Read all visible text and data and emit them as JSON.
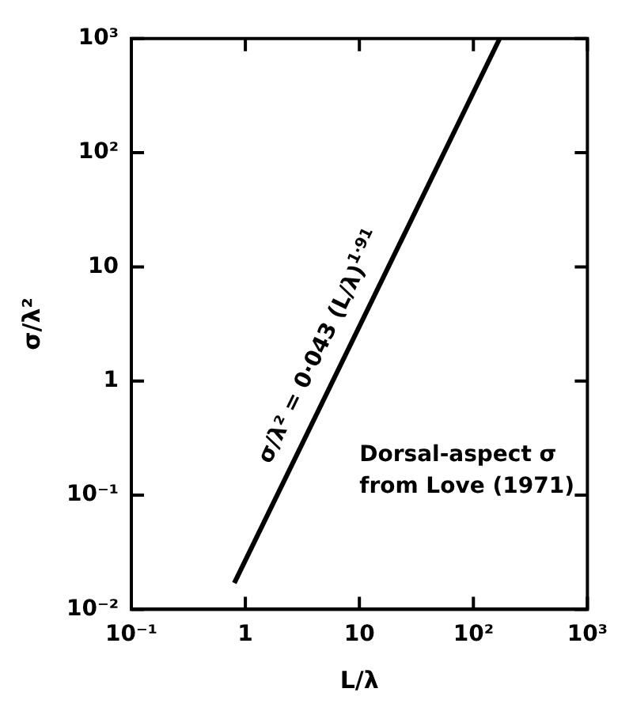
{
  "chart_data": {
    "type": "line",
    "log": "xy",
    "xlabel": "L/λ",
    "ylabel": "σ/λ²",
    "x": [
      0.8,
      170
    ],
    "series": [
      {
        "color": "#000000",
        "values": [
          0.017,
          1000
        ]
      }
    ],
    "xlim": [
      0.1,
      1000
    ],
    "ylim": [
      0.01,
      1000
    ],
    "xticks": [
      {
        "value": 0.1,
        "label": "10⁻¹"
      },
      1,
      10,
      {
        "value": 100,
        "label": "10²"
      },
      {
        "value": 1000,
        "label": "10³"
      }
    ],
    "yticks": [
      {
        "value": 0.01,
        "label": "10⁻²"
      },
      {
        "value": 0.1,
        "label": "10⁻¹"
      },
      1,
      10,
      {
        "value": 100,
        "label": "10²"
      },
      {
        "value": 1000,
        "label": "10³"
      }
    ],
    "annotations": [
      "σ/λ² = 0·043 (L/λ)$^{1·91}$",
      "Dorsal-aspect σ\nfrom Love (1971)"
    ],
    "grid": false,
    "legend": false,
    "marker": "none",
    "line_style": "solid"
  }
}
